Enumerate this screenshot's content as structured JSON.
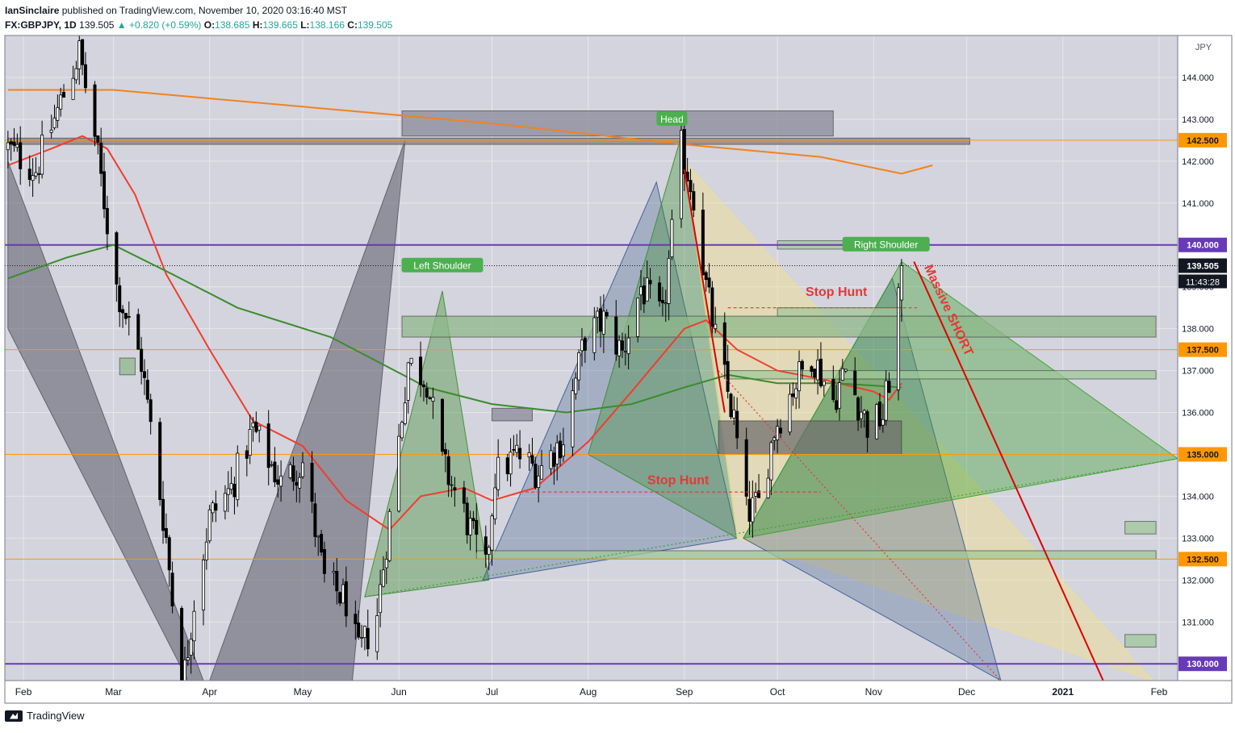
{
  "header": {
    "publisher": "IanSinclaire",
    "published_text": "published on TradingView.com, November 10, 2020 03:16:40 MST",
    "symbol": "FX:GBPJPY, 1D",
    "last": "139.505",
    "change": "▲ +0.820 (+0.59%)",
    "open_label": "O:",
    "open": "138.685",
    "high_label": "H:",
    "high": "139.665",
    "low_label": "L:",
    "low": "138.166",
    "close_label": "C:",
    "close": "139.505"
  },
  "footer": {
    "brand": "TradingView"
  },
  "colors": {
    "background": "#d3d4dd",
    "up_candle": "#ffffff",
    "down_candle": "#000000",
    "ma_fast": "#f23c2e",
    "ma_mid": "#3a8c2c",
    "ma_slow": "#f2821e",
    "level_orange": "#ff9800",
    "level_purple": "#673ab7",
    "annotation_red": "#e53935",
    "label_green": "#4caf50"
  },
  "chart_data": {
    "type": "candlestick",
    "symbol": "FX:GBPJPY",
    "timeframe": "1D",
    "currency": "JPY",
    "y_range": [
      129.6,
      145.0
    ],
    "x_range_dates": [
      "2020-01-26",
      "2021-02-07"
    ],
    "x_tick_labels": [
      {
        "date": "2020-02-01",
        "label": "Feb"
      },
      {
        "date": "2020-03-01",
        "label": "Mar"
      },
      {
        "date": "2020-04-01",
        "label": "Apr"
      },
      {
        "date": "2020-05-01",
        "label": "May"
      },
      {
        "date": "2020-06-01",
        "label": "Jun"
      },
      {
        "date": "2020-07-01",
        "label": "Jul"
      },
      {
        "date": "2020-08-01",
        "label": "Aug"
      },
      {
        "date": "2020-09-01",
        "label": "Sep"
      },
      {
        "date": "2020-10-01",
        "label": "Oct"
      },
      {
        "date": "2020-11-01",
        "label": "Nov"
      },
      {
        "date": "2020-12-01",
        "label": "Dec"
      },
      {
        "date": "2021-01-01",
        "label": "2021"
      },
      {
        "date": "2021-02-01",
        "label": "Feb"
      }
    ],
    "y_tick_labels": [
      "144.000",
      "143.000",
      "142.000",
      "141.000",
      "139.000",
      "138.000",
      "137.000",
      "136.000",
      "134.000",
      "133.000",
      "132.000",
      "131.000"
    ],
    "price_levels": [
      {
        "value": 142.5,
        "label": "142.500",
        "color": "#ff9800"
      },
      {
        "value": 140.0,
        "label": "140.000",
        "color": "#673ab7"
      },
      {
        "value": 137.5,
        "label": "137.500",
        "color": "#ff9800"
      },
      {
        "value": 135.0,
        "label": "135.000",
        "color": "#ff9800"
      },
      {
        "value": 132.5,
        "label": "132.500",
        "color": "#ff9800"
      },
      {
        "value": 130.0,
        "label": "130.000",
        "color": "#673ab7"
      }
    ],
    "last_price_label": "139.505",
    "countdown_label": "11:43:28",
    "anchors": [
      [
        "2020-01-27",
        142.3
      ],
      [
        "2020-02-05",
        141.8
      ],
      [
        "2020-02-12",
        143.2
      ],
      [
        "2020-02-19",
        144.6
      ],
      [
        "2020-02-24",
        142.6
      ],
      [
        "2020-03-02",
        139.0
      ],
      [
        "2020-03-10",
        137.2
      ],
      [
        "2020-03-18",
        133.0
      ],
      [
        "2020-03-23",
        129.3
      ],
      [
        "2020-03-27",
        131.5
      ],
      [
        "2020-04-01",
        133.5
      ],
      [
        "2020-04-08",
        134.2
      ],
      [
        "2020-04-15",
        135.6
      ],
      [
        "2020-04-24",
        134.3
      ],
      [
        "2020-05-01",
        134.8
      ],
      [
        "2020-05-08",
        132.0
      ],
      [
        "2020-05-15",
        131.5
      ],
      [
        "2020-05-19",
        130.2
      ],
      [
        "2020-05-25",
        131.2
      ],
      [
        "2020-05-29",
        133.5
      ],
      [
        "2020-06-04",
        137.2
      ],
      [
        "2020-06-10",
        136.8
      ],
      [
        "2020-06-15",
        134.8
      ],
      [
        "2020-06-22",
        133.6
      ],
      [
        "2020-06-29",
        132.2
      ],
      [
        "2020-07-02",
        134.5
      ],
      [
        "2020-07-09",
        135.0
      ],
      [
        "2020-07-16",
        134.6
      ],
      [
        "2020-07-24",
        135.4
      ],
      [
        "2020-07-31",
        137.8
      ],
      [
        "2020-08-06",
        138.2
      ],
      [
        "2020-08-12",
        137.4
      ],
      [
        "2020-08-18",
        139.0
      ],
      [
        "2020-08-25",
        138.2
      ],
      [
        "2020-08-31",
        142.3
      ],
      [
        "2020-09-04",
        141.2
      ],
      [
        "2020-09-08",
        139.0
      ],
      [
        "2020-09-11",
        137.8
      ],
      [
        "2020-09-17",
        135.8
      ],
      [
        "2020-09-21",
        133.6
      ],
      [
        "2020-09-25",
        133.8
      ],
      [
        "2020-09-30",
        135.6
      ],
      [
        "2020-10-06",
        136.6
      ],
      [
        "2020-10-12",
        137.4
      ],
      [
        "2020-10-19",
        136.3
      ],
      [
        "2020-10-23",
        137.0
      ],
      [
        "2020-10-30",
        135.7
      ],
      [
        "2020-11-04",
        135.9
      ],
      [
        "2020-11-06",
        136.8
      ],
      [
        "2020-11-10",
        139.5
      ]
    ],
    "moving_averages": [
      {
        "name": "MA fast",
        "color": "#f23c2e",
        "points": [
          [
            "2020-01-27",
            141.9
          ],
          [
            "2020-02-10",
            142.3
          ],
          [
            "2020-02-20",
            142.6
          ],
          [
            "2020-02-28",
            142.3
          ],
          [
            "2020-03-08",
            141.2
          ],
          [
            "2020-03-18",
            139.3
          ],
          [
            "2020-04-01",
            137.5
          ],
          [
            "2020-04-15",
            135.8
          ],
          [
            "2020-05-01",
            135.2
          ],
          [
            "2020-05-15",
            133.9
          ],
          [
            "2020-05-29",
            133.2
          ],
          [
            "2020-06-08",
            134.0
          ],
          [
            "2020-06-22",
            134.2
          ],
          [
            "2020-07-01",
            133.9
          ],
          [
            "2020-07-15",
            134.2
          ],
          [
            "2020-08-01",
            135.3
          ],
          [
            "2020-08-15",
            136.5
          ],
          [
            "2020-09-01",
            138.0
          ],
          [
            "2020-09-08",
            138.2
          ],
          [
            "2020-09-18",
            137.5
          ],
          [
            "2020-10-01",
            137.0
          ],
          [
            "2020-10-15",
            136.8
          ],
          [
            "2020-11-01",
            136.5
          ],
          [
            "2020-11-06",
            136.3
          ],
          [
            "2020-11-10",
            136.7
          ]
        ]
      },
      {
        "name": "MA mid",
        "color": "#3a8c2c",
        "points": [
          [
            "2020-01-27",
            139.2
          ],
          [
            "2020-02-15",
            139.7
          ],
          [
            "2020-03-01",
            140.0
          ],
          [
            "2020-03-20",
            139.3
          ],
          [
            "2020-04-10",
            138.5
          ],
          [
            "2020-05-10",
            137.8
          ],
          [
            "2020-06-10",
            136.6
          ],
          [
            "2020-07-01",
            136.2
          ],
          [
            "2020-07-25",
            136.0
          ],
          [
            "2020-08-15",
            136.2
          ],
          [
            "2020-09-01",
            136.6
          ],
          [
            "2020-09-15",
            136.9
          ],
          [
            "2020-10-01",
            136.7
          ],
          [
            "2020-10-20",
            136.7
          ],
          [
            "2020-11-10",
            136.6
          ]
        ]
      },
      {
        "name": "MA slow",
        "color": "#f2821e",
        "points": [
          [
            "2020-01-27",
            143.7
          ],
          [
            "2020-03-01",
            143.7
          ],
          [
            "2020-05-01",
            143.3
          ],
          [
            "2020-07-01",
            142.9
          ],
          [
            "2020-09-01",
            142.4
          ],
          [
            "2020-10-15",
            142.1
          ],
          [
            "2020-11-10",
            141.7
          ],
          [
            "2020-11-20",
            141.9
          ]
        ]
      }
    ],
    "zones": [
      {
        "from": "2020-06-02",
        "to": "2020-10-19",
        "lo": 142.6,
        "hi": 143.2,
        "color": "#8a8a9a"
      },
      {
        "from": "2020-01-27",
        "to": "2020-12-02",
        "lo": 142.4,
        "hi": 142.55,
        "color": "#8a7f7f"
      },
      {
        "from": "2020-06-02",
        "to": "2021-01-31",
        "lo": 137.8,
        "hi": 138.3,
        "color": "#8fb88a"
      },
      {
        "from": "2020-09-15",
        "to": "2021-01-31",
        "lo": 136.8,
        "hi": 137.0,
        "color": "#a0c89a"
      },
      {
        "from": "2020-10-01",
        "to": "2020-11-10",
        "lo": 139.9,
        "hi": 140.1,
        "color": "#a0c89a"
      },
      {
        "from": "2020-10-01",
        "to": "2020-11-10",
        "lo": 138.3,
        "hi": 138.5,
        "color": "#a0c89a"
      },
      {
        "from": "2020-09-12",
        "to": "2020-11-10",
        "lo": 135.0,
        "hi": 135.8,
        "color": "#6f6f6f"
      },
      {
        "from": "2020-06-26",
        "to": "2021-01-31",
        "lo": 132.5,
        "hi": 132.7,
        "color": "#a0c89a"
      },
      {
        "from": "2021-01-21",
        "to": "2021-01-31",
        "lo": 133.1,
        "hi": 133.4,
        "color": "#a0c89a"
      },
      {
        "from": "2021-01-21",
        "to": "2021-01-31",
        "lo": 130.4,
        "hi": 130.7,
        "color": "#a0c89a"
      },
      {
        "from": "2020-07-01",
        "to": "2020-07-14",
        "lo": 135.8,
        "hi": 136.1,
        "color": "#8a8a9a"
      },
      {
        "from": "2020-03-03",
        "to": "2020-03-08",
        "lo": 136.9,
        "hi": 137.3,
        "color": "#8fb88a"
      }
    ],
    "patterns": [
      {
        "color": "#5a5a66",
        "opacity": 0.55,
        "points": [
          [
            "2020-01-27",
            138.0
          ],
          [
            "2020-01-27",
            142.0
          ],
          [
            "2020-03-30",
            129.6
          ],
          [
            "2020-03-25",
            129.6
          ]
        ]
      },
      {
        "color": "#5a5a66",
        "opacity": 0.55,
        "points": [
          [
            "2020-04-01",
            129.6
          ],
          [
            "2020-06-03",
            142.5
          ],
          [
            "2020-05-17",
            129.6
          ]
        ]
      },
      {
        "color": "#3a8c2c",
        "opacity": 0.38,
        "points": [
          [
            "2020-05-21",
            131.6
          ],
          [
            "2020-06-15",
            138.9
          ],
          [
            "2020-06-30",
            132.0
          ]
        ]
      },
      {
        "color": "#3a5a8c",
        "opacity": 0.3,
        "points": [
          [
            "2020-06-28",
            132.0
          ],
          [
            "2020-08-23",
            141.5
          ],
          [
            "2020-09-18",
            133.0
          ]
        ]
      },
      {
        "color": "#3a8c2c",
        "opacity": 0.35,
        "points": [
          [
            "2020-08-01",
            135.0
          ],
          [
            "2020-08-31",
            142.6
          ],
          [
            "2020-09-18",
            133.0
          ]
        ]
      },
      {
        "color": "#f2e08a",
        "opacity": 0.45,
        "points": [
          [
            "2020-09-01",
            142.0
          ],
          [
            "2021-01-30",
            129.6
          ],
          [
            "2020-09-18",
            133.0
          ]
        ]
      },
      {
        "color": "#3a5a8c",
        "opacity": 0.3,
        "points": [
          [
            "2020-09-20",
            133.0
          ],
          [
            "2020-11-07",
            139.2
          ],
          [
            "2020-12-12",
            129.6
          ]
        ]
      },
      {
        "color": "#3aa12c",
        "opacity": 0.38,
        "points": [
          [
            "2020-09-20",
            133.0
          ],
          [
            "2020-11-10",
            139.6
          ],
          [
            "2021-02-07",
            134.9
          ]
        ]
      }
    ],
    "lines": [
      {
        "color": "#e00000",
        "width": 2,
        "dash": "",
        "points": [
          [
            "2020-11-14",
            139.6
          ],
          [
            "2021-01-14",
            129.6
          ]
        ]
      },
      {
        "color": "#e00000",
        "width": 2,
        "dash": "",
        "points": [
          [
            "2020-09-01",
            141.8
          ],
          [
            "2020-09-14",
            136.0
          ]
        ]
      },
      {
        "color": "#3aa12c",
        "width": 1.2,
        "dash": "2,3",
        "points": [
          [
            "2020-05-21",
            131.6
          ],
          [
            "2021-02-07",
            134.9
          ]
        ]
      },
      {
        "color": "#e53935",
        "width": 1.2,
        "dash": "2,3",
        "points": [
          [
            "2020-09-12",
            137.0
          ],
          [
            "2020-12-12",
            129.6
          ]
        ]
      },
      {
        "color": "#e53935",
        "width": 1.2,
        "dash": "4,3",
        "points": [
          [
            "2020-09-15",
            138.5
          ],
          [
            "2020-11-15",
            138.5
          ]
        ]
      },
      {
        "color": "#e53935",
        "width": 1.2,
        "dash": "4,3",
        "points": [
          [
            "2020-07-10",
            134.1
          ],
          [
            "2020-10-15",
            134.1
          ]
        ]
      }
    ],
    "annotations": [
      {
        "text": "Head",
        "date": "2020-08-28",
        "value": 143.0,
        "type": "badge"
      },
      {
        "text": "Left Shoulder",
        "date": "2020-06-15",
        "value": 139.5,
        "type": "badge"
      },
      {
        "text": "Right Shoulder",
        "date": "2020-11-05",
        "value": 140.0,
        "type": "badge"
      },
      {
        "text": "Stop Hunt",
        "date": "2020-10-20",
        "value": 138.9,
        "type": "red"
      },
      {
        "text": "Stop Hunt",
        "date": "2020-08-30",
        "value": 134.4,
        "type": "red"
      },
      {
        "text": "Massive SHORT",
        "date": "2020-11-24",
        "value": 138.4,
        "type": "red-rot"
      }
    ]
  }
}
